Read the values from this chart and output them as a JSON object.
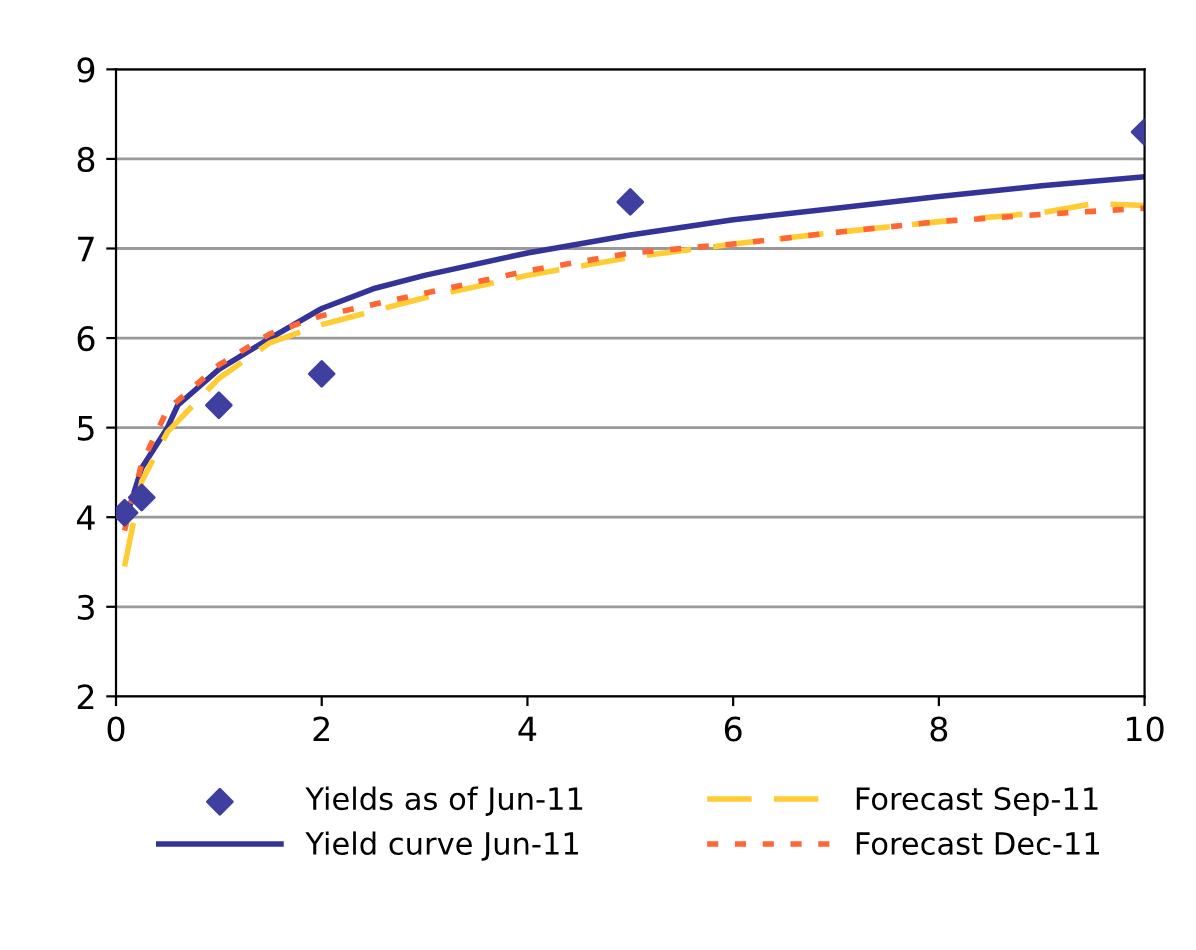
{
  "chart_data": {
    "type": "line",
    "xlim": [
      0,
      10
    ],
    "xticks": [
      0,
      2,
      4,
      6,
      8,
      10
    ],
    "ylim": [
      2,
      9
    ],
    "yticks": [
      2,
      3,
      4,
      5,
      6,
      7,
      8,
      9
    ],
    "grid": "y",
    "legend": "bottom",
    "series": [
      {
        "name": "Yields as of Jun-11",
        "type": "scatter",
        "marker": "diamond",
        "color": "#3f3f9f",
        "x": [
          0.083,
          0.25,
          1,
          2,
          5,
          10
        ],
        "values": [
          4.05,
          4.22,
          5.25,
          5.6,
          7.52,
          8.3
        ]
      },
      {
        "name": "Yield curve Jun-11",
        "line_style": "solid",
        "color": "#333399",
        "x": [
          0.1,
          0.25,
          0.5,
          0.6,
          1,
          1.5,
          2,
          2.5,
          3,
          4,
          5,
          6,
          7,
          8,
          9,
          10
        ],
        "values": [
          4.0,
          4.55,
          5.0,
          5.25,
          5.65,
          6.0,
          6.33,
          6.55,
          6.7,
          6.95,
          7.15,
          7.32,
          7.45,
          7.58,
          7.7,
          7.8
        ]
      },
      {
        "name": "Forecast Sep-11",
        "line_style": "dashed",
        "color": "#ffcc33",
        "x": [
          0.083,
          0.25,
          0.5,
          1,
          1.5,
          2,
          2.5,
          3,
          4,
          5,
          6,
          7,
          8,
          9,
          9.5,
          10
        ],
        "values": [
          3.45,
          4.4,
          4.95,
          5.55,
          5.95,
          6.15,
          6.3,
          6.45,
          6.7,
          6.9,
          7.05,
          7.18,
          7.3,
          7.4,
          7.5,
          7.48
        ]
      },
      {
        "name": "Forecast Dec-11",
        "line_style": "dotted",
        "color": "#ff6633",
        "x": [
          0.083,
          0.25,
          0.5,
          1,
          1.5,
          2,
          3,
          4,
          5,
          6,
          7,
          8,
          9,
          10
        ],
        "values": [
          3.85,
          4.6,
          5.2,
          5.7,
          6.05,
          6.25,
          6.5,
          6.75,
          6.95,
          7.05,
          7.18,
          7.3,
          7.38,
          7.45
        ]
      }
    ]
  }
}
